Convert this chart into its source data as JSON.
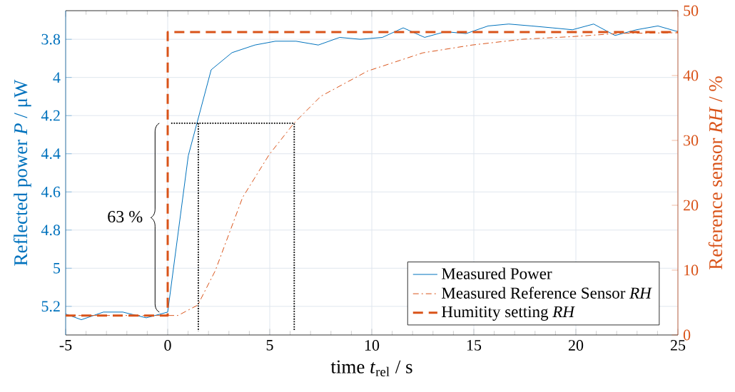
{
  "chart_data": {
    "type": "line",
    "xlabel": "time *t*$_{rel}$ / s",
    "ylabel": "Reflected power *P* / μW",
    "y2label": "Reference sensor *RH* / %",
    "xlim": [
      -5,
      25
    ],
    "xticks": [
      -5,
      0,
      5,
      10,
      15,
      20,
      25
    ],
    "ylim": [
      5.35,
      3.65
    ],
    "yticks": [
      3.8,
      4,
      4.2,
      4.4,
      4.6,
      4.8,
      5,
      5.2
    ],
    "y2lim": [
      0,
      50
    ],
    "y2ticks": [
      0,
      10,
      20,
      30,
      40,
      50
    ],
    "grid": true,
    "legend": "bottom right",
    "series": [
      {
        "name": "Measured Power",
        "color": "#0072bd",
        "line_style": "solid",
        "x": [
          -5,
          -4.23,
          -3.15,
          -2.2,
          -1.05,
          0,
          1.01,
          2.13,
          3.15,
          4.27,
          5.28,
          6.29,
          7.38,
          8.43,
          9.44,
          10.52,
          11.54,
          12.59,
          13.6,
          14.62,
          15.7,
          16.71,
          17.83,
          18.85,
          19.83,
          20.87,
          21.92,
          22.97,
          24.02,
          25
        ],
        "values": [
          5.24,
          5.27,
          5.23,
          5.23,
          5.26,
          5.23,
          4.41,
          3.96,
          3.87,
          3.83,
          3.81,
          3.81,
          3.83,
          3.79,
          3.8,
          3.79,
          3.74,
          3.79,
          3.76,
          3.77,
          3.73,
          3.72,
          3.73,
          3.74,
          3.75,
          3.72,
          3.78,
          3.75,
          3.73,
          3.76
        ]
      },
      {
        "name": "Measured Reference Sensor *RH*",
        "color": "#d95319",
        "line_style": "dashdot",
        "axis": "y2",
        "x": [
          -5,
          0.5,
          1.47,
          2.33,
          3.67,
          4.97,
          6.2,
          7.5,
          9.8,
          12.5,
          14.9,
          17.4,
          19.8,
          22.1,
          25
        ],
        "values": [
          3,
          3,
          4.6,
          9.9,
          21.2,
          27.8,
          32.7,
          36.8,
          40.7,
          43.5,
          44.7,
          45.6,
          46,
          46.5,
          46.6
        ]
      },
      {
        "name": "Humitity setting *RH*",
        "color": "#d95319",
        "line_style": "dashed",
        "axis": "y2",
        "x": [
          -5,
          0,
          0,
          25
        ],
        "values": [
          3,
          3,
          46.7,
          46.7
        ]
      },
      {
        "color": "#000000",
        "line_style": "dotted",
        "x": [
          0.17,
          6.2,
          6.2
        ],
        "values": [
          4.24,
          4.24,
          5.33
        ]
      },
      {
        "color": "#000000",
        "line_style": "dotted",
        "x": [
          1.5,
          1.5
        ],
        "values": [
          4.24,
          5.33
        ]
      }
    ],
    "annotations": [
      {
        "text": "63 %",
        "x": -0.2,
        "y": 4.73
      }
    ]
  }
}
